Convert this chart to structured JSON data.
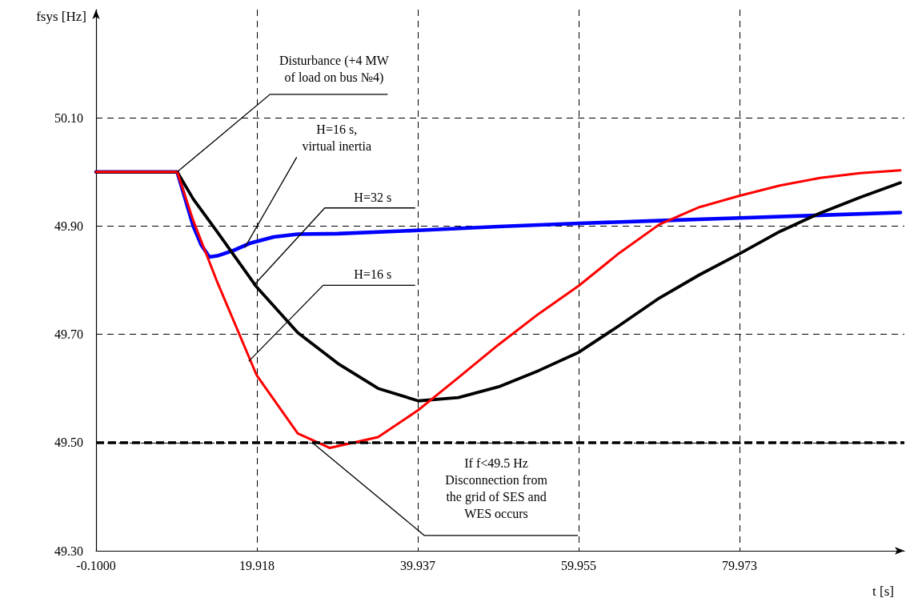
{
  "chart_data": {
    "type": "line",
    "xlabel": "t [s]",
    "ylabel": "fsys [Hz]",
    "xlim": [
      -0.1,
      100.5
    ],
    "ylim": [
      49.3,
      50.3
    ],
    "xticks": [
      {
        "value": -0.1,
        "label": "-0.1000"
      },
      19.918,
      39.937,
      59.955,
      79.973
    ],
    "yticks": [
      {
        "value": 49.3,
        "label": "49.30"
      },
      {
        "value": 49.5,
        "label": "49.50"
      },
      {
        "value": 49.7,
        "label": "49.70"
      },
      {
        "value": 49.9,
        "label": "49.90"
      },
      {
        "value": 50.1,
        "label": "50.10"
      }
    ],
    "grid": true,
    "legend": false,
    "marker": "none",
    "line_style": "solid",
    "series": [
      {
        "color": "#0000ff",
        "x": [
          -0.1,
          10,
          11,
          12,
          13,
          14,
          15,
          17,
          19,
          22,
          25,
          30,
          40,
          50,
          60,
          70,
          80,
          90,
          100
        ],
        "values": [
          50.0,
          50.0,
          49.95,
          49.9,
          49.865,
          49.843,
          49.845,
          49.855,
          49.868,
          49.88,
          49.885,
          49.886,
          49.892,
          49.899,
          49.905,
          49.91,
          49.915,
          49.92,
          49.925
        ]
      },
      {
        "color": "#000000",
        "x": [
          -0.1,
          10,
          12,
          15,
          19.8,
          25,
          30,
          35,
          40,
          45,
          50,
          55,
          60,
          65,
          70,
          75,
          80,
          85,
          90,
          95,
          100
        ],
        "values": [
          50.0,
          50.0,
          49.95,
          49.889,
          49.789,
          49.703,
          49.646,
          49.6,
          49.577,
          49.583,
          49.603,
          49.633,
          49.667,
          49.716,
          49.767,
          49.81,
          49.849,
          49.89,
          49.924,
          49.953,
          49.98
        ]
      },
      {
        "color": "#ff0000",
        "x": [
          -0.1,
          10,
          12,
          15,
          19.9,
          25,
          29,
          35,
          40,
          45,
          50,
          55,
          60,
          65,
          70,
          75,
          80,
          85,
          90,
          95,
          100
        ],
        "values": [
          50.0,
          50.0,
          49.91,
          49.796,
          49.624,
          49.517,
          49.49,
          49.51,
          49.56,
          49.62,
          49.681,
          49.738,
          49.79,
          49.85,
          49.903,
          49.935,
          49.956,
          49.975,
          49.989,
          49.998,
          50.003
        ]
      }
    ],
    "ref_lines": [
      {
        "axis": "y",
        "value": 49.5,
        "color": "#000000",
        "line_style": "dashed"
      }
    ],
    "annotations": [
      {
        "text": "Disturbance (+4 MW\nof load on bus №4)",
        "x": 10,
        "y": 50.0
      },
      {
        "text": "H=16 s,\nvirtual inertia",
        "x": 18.4,
        "y": 49.86
      },
      {
        "text": "H=32 s",
        "x": 19.5,
        "y": 49.79
      },
      {
        "text": "H=16 s",
        "x": 18.9,
        "y": 49.65
      },
      {
        "text": "If f<49.5 Hz\nDisconnection from\nthe grid of SES and\nWES occurs",
        "x": 26.8,
        "y": 49.5
      }
    ]
  }
}
